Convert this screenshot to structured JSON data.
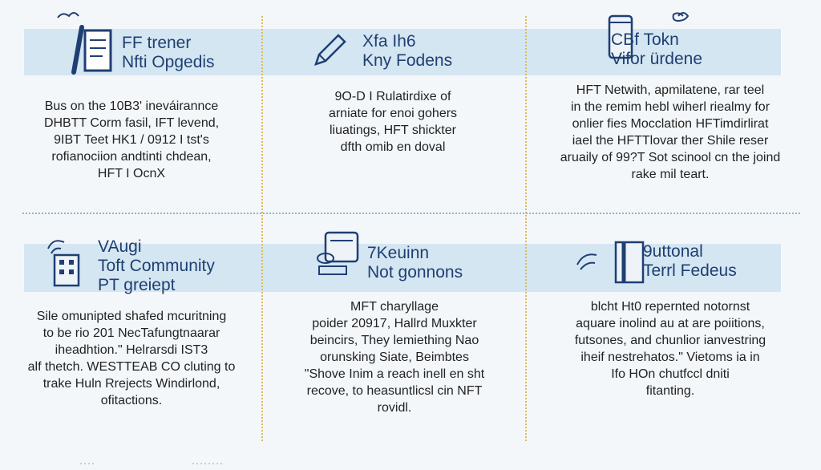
{
  "cells": [
    {
      "icon": "document-pen-icon",
      "title": [
        "FF trener",
        "Nfti Opgedis"
      ],
      "body": [
        "Bus on the 10B3' ineváirannce",
        "DHBTT Corm fasil, IFT levend,",
        "9IBT Teet HK1 / 0912 I tst's",
        "rofianociion andtinti chdean,",
        "HFT I OcnX"
      ]
    },
    {
      "icon": "pencil-icon",
      "title": [
        "Xfa Ih6",
        "Kny Fodens"
      ],
      "body": [
        "9O-D I Rulatirdixe of",
        "arniate for enoi gohers",
        "liuatings, HFT shickter",
        "dfth omib en doval"
      ]
    },
    {
      "icon": "jar-icon",
      "title": [
        "CBf Tokn",
        "Vifor ürdene"
      ],
      "body": [
        "HFT Netwith, apmilatene, rar teel",
        "in the remim hebl wiherl riealmy for",
        "onlier fies Mocclation HFTimdirlirat",
        "iael the HFTTlovar ther Shile reser",
        "aruaily of 99?T Sot scinool cn the joind",
        "rake mil teart."
      ]
    },
    {
      "icon": "building-icon",
      "title": [
        "VAugi",
        "Toft Community",
        "PT greiept"
      ],
      "body": [
        "Sile omunipted shafed mcuritning",
        "to be rio 201 NecTafungtnaarar",
        "iheadhtion.\" Helrarsdi IST3",
        "alf thetch. WESTTEAB CO cluting to",
        "trake Huln Rrejects Windirlond,",
        "ofitactions."
      ]
    },
    {
      "icon": "server-icon",
      "title": [
        "7Keuinn",
        "Not gonnons"
      ],
      "body": [
        "MFT charyllage",
        "poider 20917, Hallrd Muxkter",
        "beincirs, They lemiething Nao",
        "orunsking Siate, Beimbtes",
        "\"Shove Inim a reach inell en sht",
        "recove, to heasuntlicsl cin NFT",
        "rovidl."
      ]
    },
    {
      "icon": "doorway-icon",
      "title": [
        "9uttonal",
        "Terrl Fedeus"
      ],
      "body": [
        "blcht Ht0 repernted notornst",
        "aquare inolind au at are poiitions,",
        "futsones, and chunlior ianvestring",
        "iheif nestrehatos.\" Vietoms ia in",
        "Ifo HOn chutfccl dniti",
        "fitanting."
      ]
    }
  ]
}
